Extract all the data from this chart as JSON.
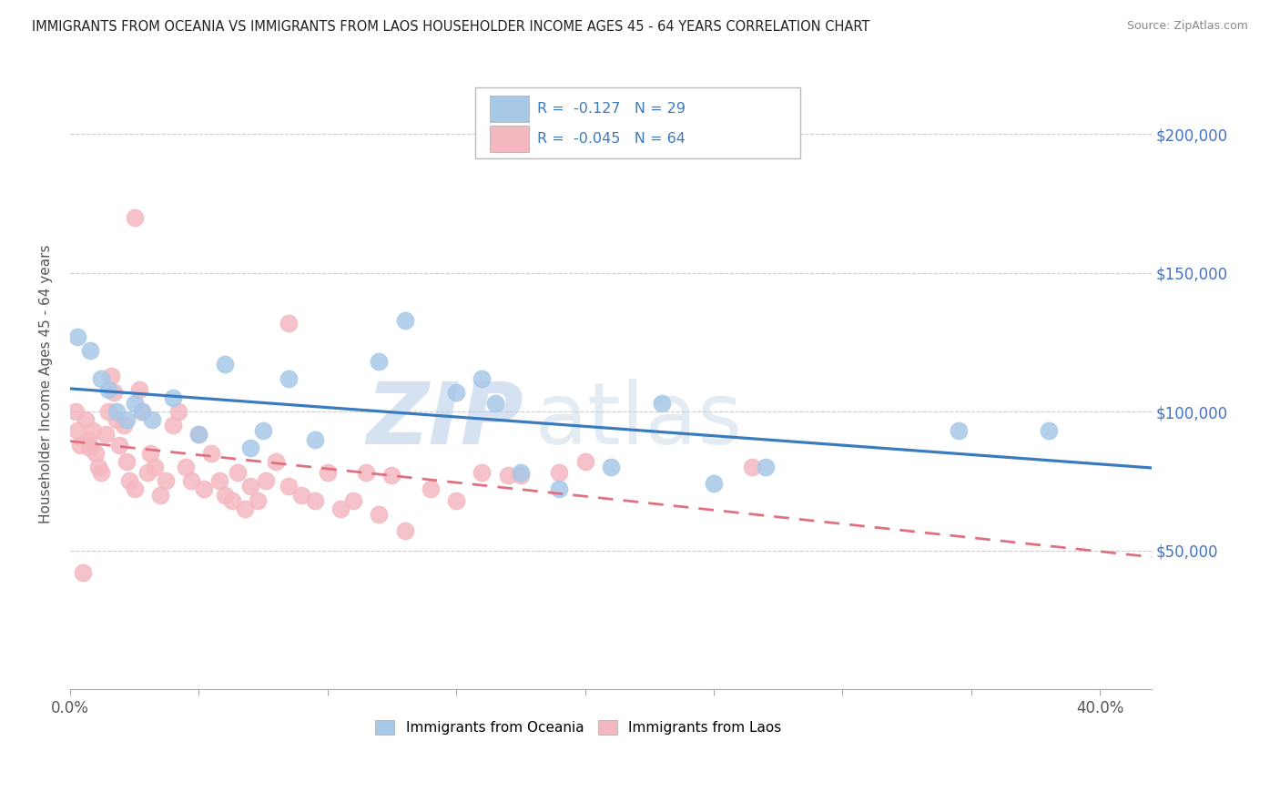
{
  "title": "IMMIGRANTS FROM OCEANIA VS IMMIGRANTS FROM LAOS HOUSEHOLDER INCOME AGES 45 - 64 YEARS CORRELATION CHART",
  "source": "Source: ZipAtlas.com",
  "ylabel": "Householder Income Ages 45 - 64 years",
  "ytick_labels": [
    "$50,000",
    "$100,000",
    "$150,000",
    "$200,000"
  ],
  "ytick_vals": [
    50000,
    100000,
    150000,
    200000
  ],
  "ylim": [
    0,
    220000
  ],
  "xlim": [
    0.0,
    0.42
  ],
  "oceania_color": "#a8c8e8",
  "laos_color": "#f4b8c0",
  "trend_oceania_color": "#3a7bbf",
  "trend_laos_color": "#e07080",
  "legend_oceania_label": "Immigrants from Oceania",
  "legend_laos_label": "Immigrants from Laos",
  "R_oceania": -0.127,
  "N_oceania": 29,
  "R_laos": -0.045,
  "N_laos": 64,
  "watermark_zip": "ZIP",
  "watermark_atlas": "atlas",
  "oceania_x": [
    0.003,
    0.008,
    0.012,
    0.015,
    0.018,
    0.022,
    0.025,
    0.028,
    0.032,
    0.04,
    0.05,
    0.06,
    0.07,
    0.075,
    0.085,
    0.095,
    0.12,
    0.13,
    0.15,
    0.16,
    0.165,
    0.175,
    0.19,
    0.21,
    0.23,
    0.25,
    0.27,
    0.345,
    0.38
  ],
  "oceania_y": [
    127000,
    122000,
    112000,
    108000,
    100000,
    97000,
    103000,
    100000,
    97000,
    105000,
    92000,
    117000,
    87000,
    93000,
    112000,
    90000,
    118000,
    133000,
    107000,
    112000,
    103000,
    78000,
    72000,
    80000,
    103000,
    74000,
    80000,
    93000,
    93000
  ],
  "laos_x": [
    0.002,
    0.003,
    0.004,
    0.006,
    0.007,
    0.008,
    0.009,
    0.01,
    0.011,
    0.012,
    0.014,
    0.015,
    0.016,
    0.017,
    0.018,
    0.019,
    0.021,
    0.022,
    0.023,
    0.025,
    0.027,
    0.028,
    0.03,
    0.031,
    0.033,
    0.035,
    0.037,
    0.04,
    0.042,
    0.045,
    0.047,
    0.05,
    0.052,
    0.055,
    0.058,
    0.06,
    0.063,
    0.065,
    0.068,
    0.07,
    0.073,
    0.076,
    0.08,
    0.085,
    0.09,
    0.095,
    0.1,
    0.105,
    0.11,
    0.115,
    0.12,
    0.125,
    0.13,
    0.14,
    0.15,
    0.16,
    0.17,
    0.175,
    0.19,
    0.2,
    0.005,
    0.025,
    0.085,
    0.265
  ],
  "laos_y": [
    100000,
    93000,
    88000,
    97000,
    90000,
    87000,
    93000,
    85000,
    80000,
    78000,
    92000,
    100000,
    113000,
    107000,
    97000,
    88000,
    95000,
    82000,
    75000,
    72000,
    108000,
    100000,
    78000,
    85000,
    80000,
    70000,
    75000,
    95000,
    100000,
    80000,
    75000,
    92000,
    72000,
    85000,
    75000,
    70000,
    68000,
    78000,
    65000,
    73000,
    68000,
    75000,
    82000,
    73000,
    70000,
    68000,
    78000,
    65000,
    68000,
    78000,
    63000,
    77000,
    57000,
    72000,
    68000,
    78000,
    77000,
    77000,
    78000,
    82000,
    42000,
    170000,
    132000,
    80000
  ]
}
